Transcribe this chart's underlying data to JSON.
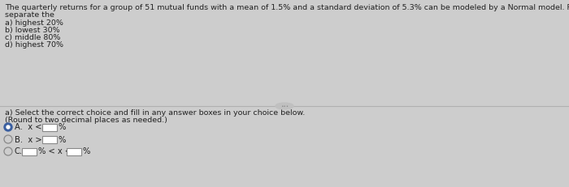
{
  "bg_color": "#cdcdcd",
  "title_line1": "The quarterly returns for a group of 51 mutual funds with a mean of 1.5% and a standard deviation of 5.3% can be modeled by a Normal model. From these funds, find the cutoff return value(s) that would",
  "title_line2": "separate the",
  "items": [
    "a) highest 20%",
    "b) lowest 30%",
    "c) middle 80%",
    "d) highest 70%"
  ],
  "bottom_header": "a) Select the correct choice and fill in any answer boxes in your choice below.",
  "bottom_subheader": "(Round to two decimal places as needed.)",
  "title_fontsize": 6.8,
  "item_fontsize": 6.8,
  "choice_fontsize": 7.2,
  "divider_color": "#b0b0b0",
  "radio_selected_color": "#3a5fa0",
  "radio_unselected_color": "#888888",
  "box_edge_color": "#888888",
  "text_color": "#222222"
}
